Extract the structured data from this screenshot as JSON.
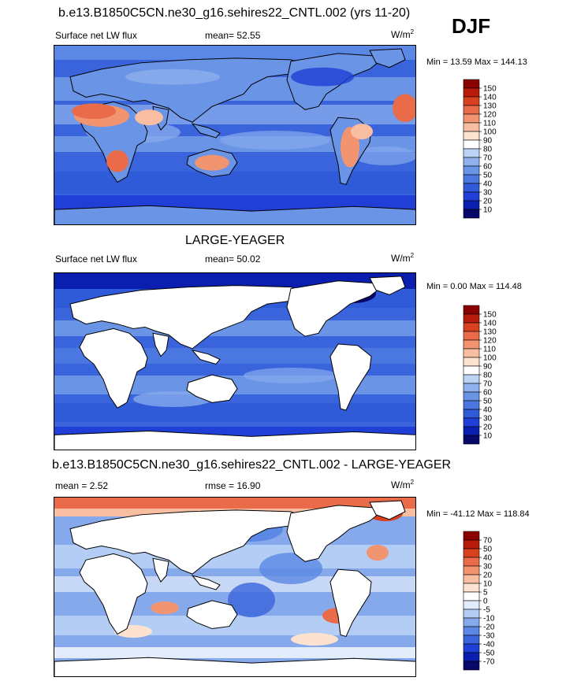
{
  "header": {
    "title": "b.e13.B1850C5CN.ne30_g16.sehires22_CNTL.002 (yrs 11-20)",
    "season": "DJF"
  },
  "panels": [
    {
      "id": "model",
      "left_label": "Surface net LW flux",
      "center_label": "mean=  52.55",
      "unit": "W/m",
      "unit_exp": "2",
      "minmax": "Min =  13.59 Max = 144.13"
    },
    {
      "id": "obs",
      "title": "LARGE-YEAGER",
      "left_label": "Surface net LW flux",
      "center_label": "mean=  50.02",
      "unit": "W/m",
      "unit_exp": "2",
      "minmax": "Min =   0.00 Max = 114.48"
    },
    {
      "id": "diff",
      "title": "b.e13.B1850C5CN.ne30_g16.sehires22_CNTL.002 - LARGE-YEAGER",
      "left_label": "mean =   2.52",
      "center_label": "rmse =  16.90",
      "unit": "W/m",
      "unit_exp": "2",
      "minmax": "Min = -41.12 Max = 118.84"
    }
  ],
  "chart_data": [
    {
      "type": "heatmap",
      "title": "Surface net LW flux",
      "units": "W/m2",
      "mean": 52.55,
      "min": 13.59,
      "max": 144.13,
      "colorbar_levels": [
        10,
        20,
        30,
        40,
        50,
        60,
        70,
        80,
        90,
        100,
        110,
        120,
        130,
        140,
        150
      ],
      "colorbar_colors": [
        "#08086b",
        "#0a1fb0",
        "#1f3fd6",
        "#2f5ad8",
        "#4a78e0",
        "#6a95e6",
        "#8fb1ee",
        "#bcd3f6",
        "#ffffff",
        "#fde2d0",
        "#f9bda2",
        "#f29470",
        "#e96b49",
        "#d8411f",
        "#b81a0c",
        "#8b0000"
      ]
    },
    {
      "type": "heatmap",
      "title": "Surface net LW flux",
      "units": "W/m2",
      "mean": 50.02,
      "min": 0.0,
      "max": 114.48,
      "colorbar_levels": [
        10,
        20,
        30,
        40,
        50,
        60,
        70,
        80,
        90,
        100,
        110,
        120,
        130,
        140,
        150
      ],
      "colorbar_colors": [
        "#08086b",
        "#0a1fb0",
        "#1f3fd6",
        "#2f5ad8",
        "#4a78e0",
        "#6a95e6",
        "#8fb1ee",
        "#bcd3f6",
        "#ffffff",
        "#fde2d0",
        "#f9bda2",
        "#f29470",
        "#e96b49",
        "#d8411f",
        "#b81a0c",
        "#8b0000"
      ]
    },
    {
      "type": "heatmap",
      "title": "b.e13.B1850C5CN.ne30_g16.sehires22_CNTL.002 - LARGE-YEAGER",
      "units": "W/m2",
      "mean": 2.52,
      "rmse": 16.9,
      "min": -41.12,
      "max": 118.84,
      "colorbar_levels": [
        -70,
        -50,
        -40,
        -30,
        -20,
        -10,
        -5,
        0,
        5,
        10,
        20,
        30,
        40,
        50,
        70
      ],
      "colorbar_colors": [
        "#08086b",
        "#0a1fb0",
        "#1f3fd6",
        "#3a64dc",
        "#5a88e4",
        "#86a9ec",
        "#b4cdf4",
        "#e2ecfb",
        "#ffffff",
        "#fde2d0",
        "#f9bda2",
        "#f29470",
        "#e96b49",
        "#d8411f",
        "#b81a0c",
        "#8b0000"
      ]
    }
  ]
}
